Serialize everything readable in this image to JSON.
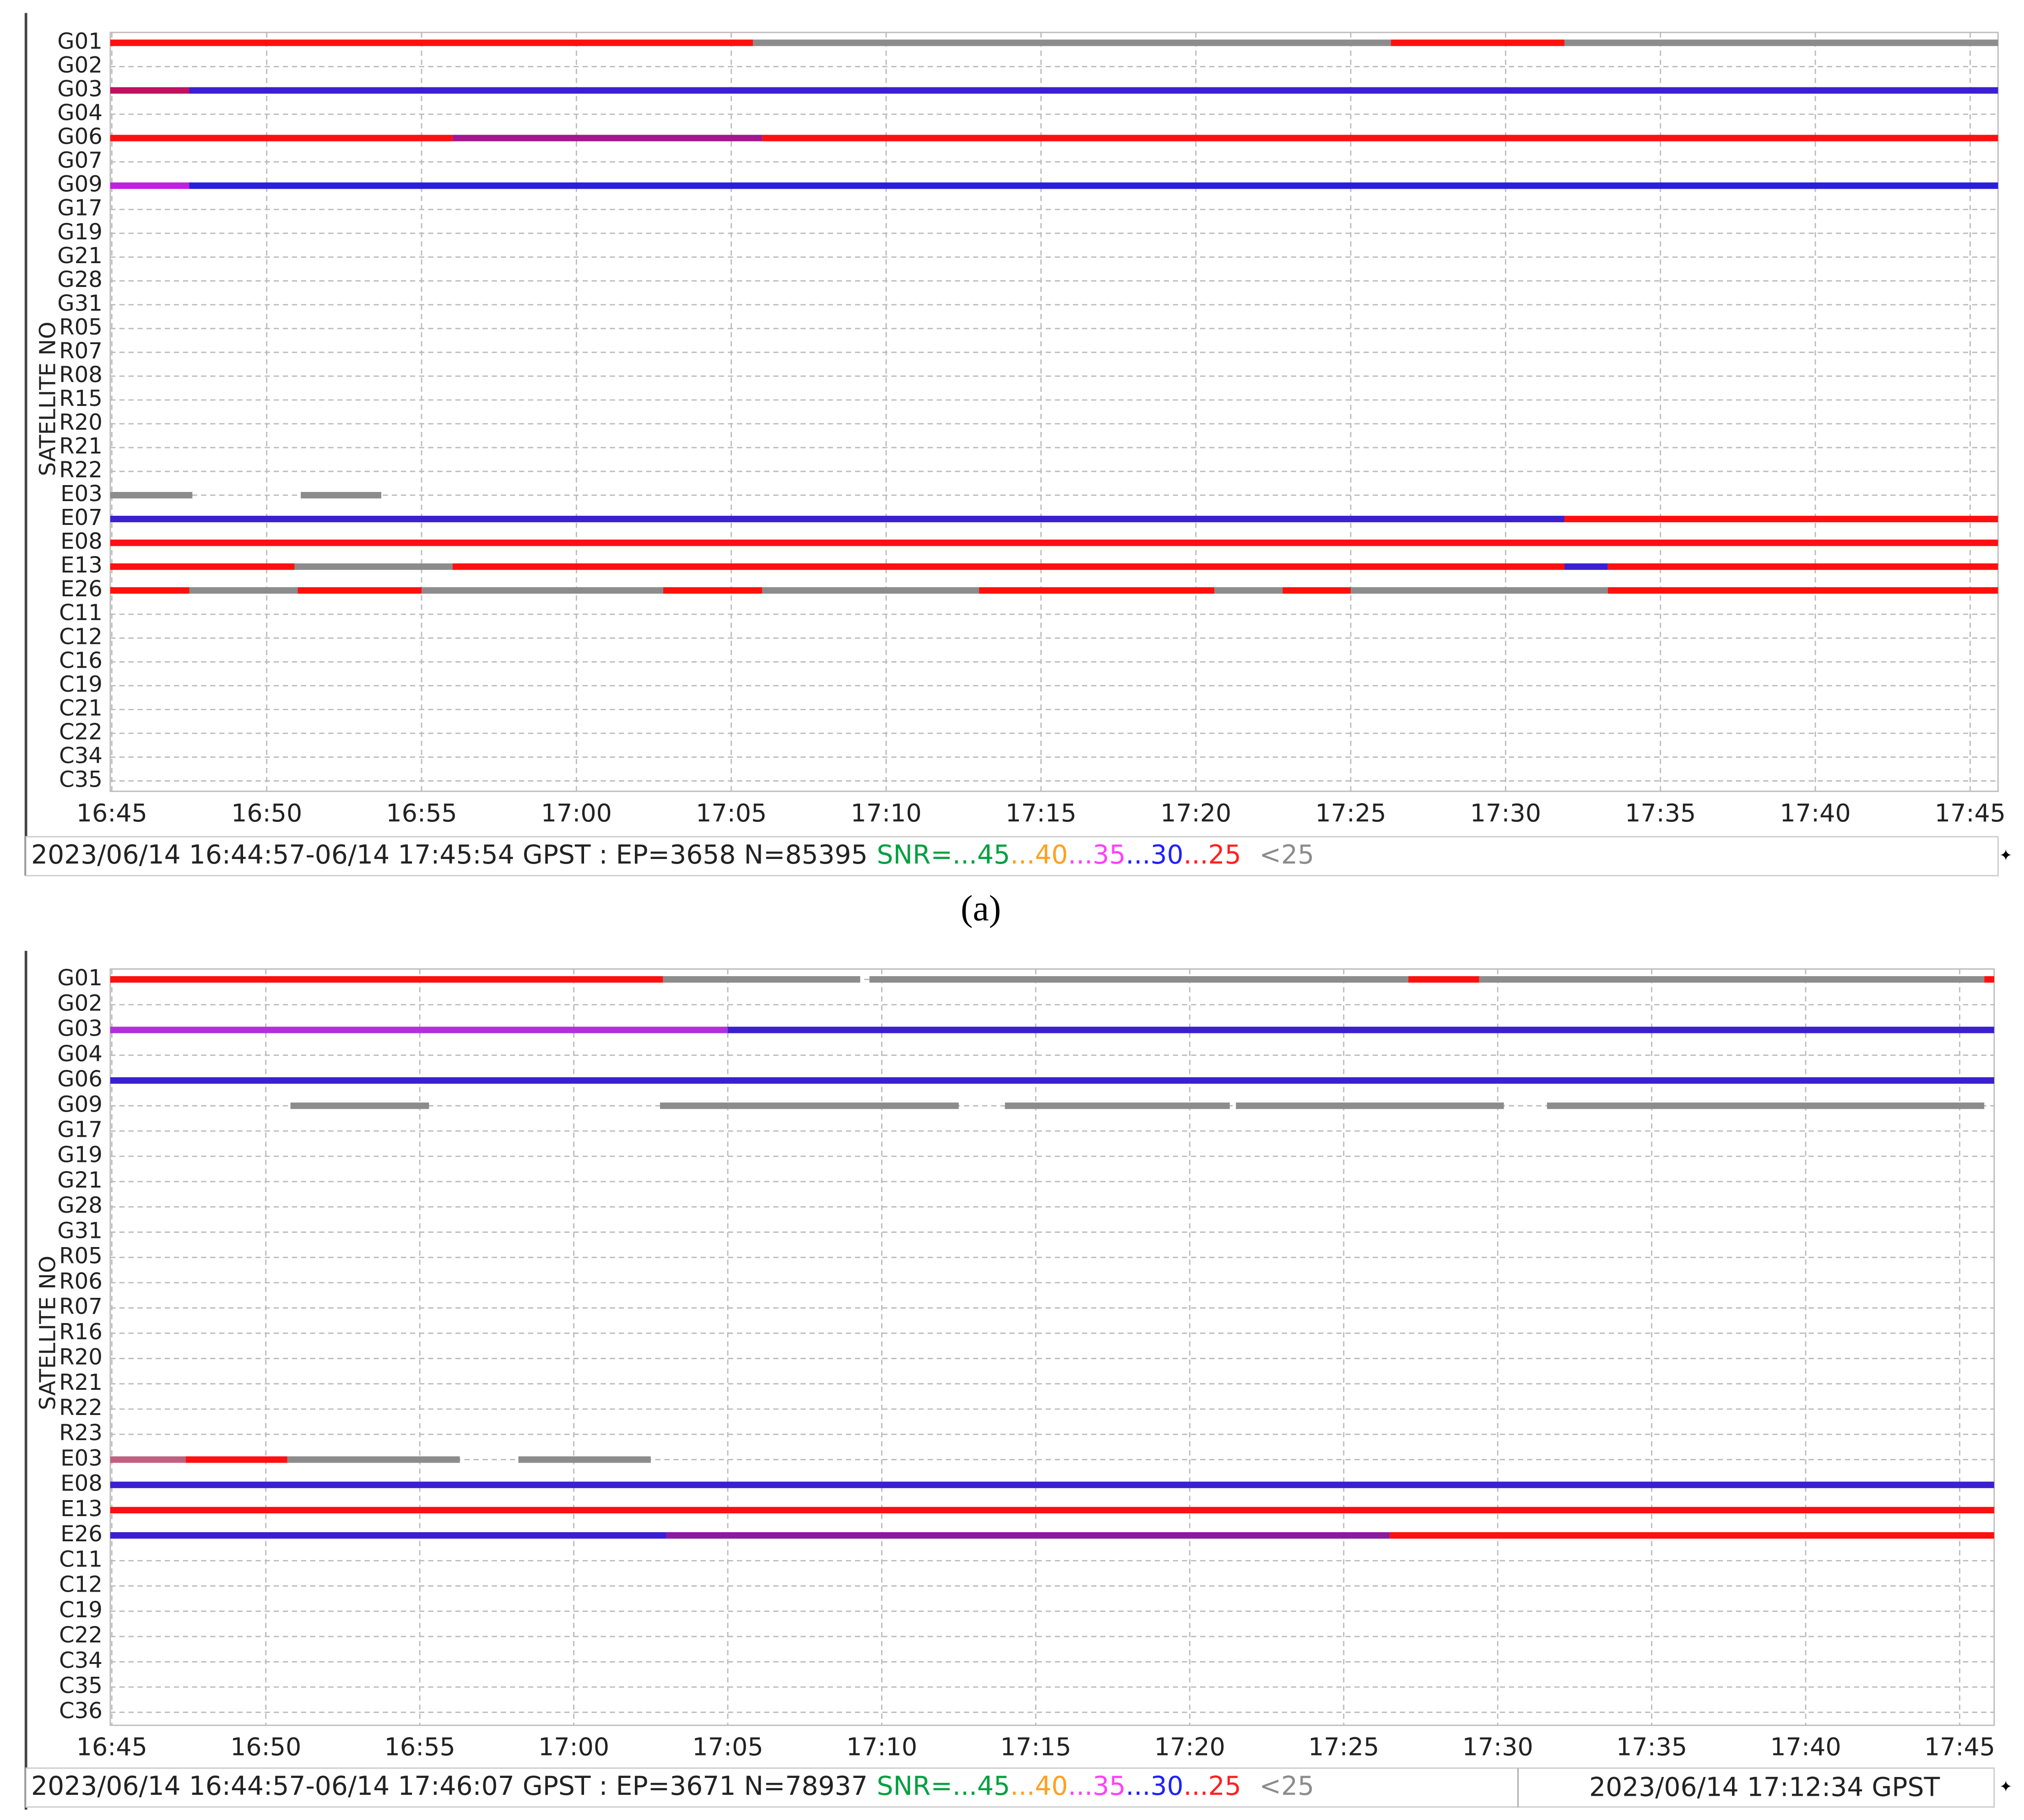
{
  "chart_data": [
    {
      "type": "timeline",
      "caption": "(a)",
      "y_label": "SATELLITE NO",
      "status": "2023/06/14 16:44:57-06/14 17:45:54 GPST : EP=3658 N=85395",
      "snr_legend": [
        {
          "label": "SNR=...45",
          "color": "#00a040"
        },
        {
          "label": "...40",
          "color": "#ffa020"
        },
        {
          "label": "...35",
          "color": "#ff40ff"
        },
        {
          "label": "...30",
          "color": "#2020ff"
        },
        {
          "label": "...25",
          "color": "#ff2020"
        },
        {
          "label": "<25",
          "color": "#8c8c8c"
        }
      ],
      "xlim": [
        1004.95,
        1065.9
      ],
      "xticks": [
        {
          "value": 1005,
          "label": "16:45"
        },
        {
          "value": 1010,
          "label": "16:50"
        },
        {
          "value": 1015,
          "label": "16:55"
        },
        {
          "value": 1020,
          "label": "17:00"
        },
        {
          "value": 1025,
          "label": "17:05"
        },
        {
          "value": 1030,
          "label": "17:10"
        },
        {
          "value": 1035,
          "label": "17:15"
        },
        {
          "value": 1040,
          "label": "17:20"
        },
        {
          "value": 1045,
          "label": "17:25"
        },
        {
          "value": 1050,
          "label": "17:30"
        },
        {
          "value": 1055,
          "label": "17:35"
        },
        {
          "value": 1060,
          "label": "17:40"
        },
        {
          "value": 1065,
          "label": "17:45"
        }
      ],
      "rows": [
        {
          "name": "G01",
          "segments": [
            {
              "start": 1004.95,
              "end": 1025.7,
              "color": "#ff1010"
            },
            {
              "start": 1025.7,
              "end": 1046.3,
              "color": "#8c8c8c"
            },
            {
              "start": 1046.3,
              "end": 1051.9,
              "color": "#ff1010"
            },
            {
              "start": 1051.9,
              "end": 1065.9,
              "color": "#8c8c8c"
            }
          ]
        },
        {
          "name": "G02",
          "segments": []
        },
        {
          "name": "G03",
          "segments": [
            {
              "start": 1004.95,
              "end": 1007.5,
              "color": "#c01060"
            },
            {
              "start": 1007.5,
              "end": 1065.9,
              "color": "#3a20d0"
            }
          ]
        },
        {
          "name": "G04",
          "segments": []
        },
        {
          "name": "G06",
          "segments": [
            {
              "start": 1004.95,
              "end": 1016,
              "color": "#ff1010"
            },
            {
              "start": 1016,
              "end": 1026,
              "color": "#a01890"
            },
            {
              "start": 1026,
              "end": 1065.9,
              "color": "#ff1010"
            }
          ]
        },
        {
          "name": "G07",
          "segments": []
        },
        {
          "name": "G09",
          "segments": [
            {
              "start": 1004.95,
              "end": 1007.5,
              "color": "#c020e0"
            },
            {
              "start": 1007.5,
              "end": 1065.9,
              "color": "#2a20d8"
            }
          ]
        },
        {
          "name": "G17",
          "segments": []
        },
        {
          "name": "G19",
          "segments": []
        },
        {
          "name": "G21",
          "segments": []
        },
        {
          "name": "G28",
          "segments": []
        },
        {
          "name": "G31",
          "segments": []
        },
        {
          "name": "R05",
          "segments": []
        },
        {
          "name": "R07",
          "segments": []
        },
        {
          "name": "R08",
          "segments": []
        },
        {
          "name": "R15",
          "segments": []
        },
        {
          "name": "R20",
          "segments": []
        },
        {
          "name": "R21",
          "segments": []
        },
        {
          "name": "R22",
          "segments": []
        },
        {
          "name": "E03",
          "segments": [
            {
              "start": 1004.95,
              "end": 1007.6,
              "color": "#8c8c8c"
            },
            {
              "start": 1011.1,
              "end": 1013.7,
              "color": "#8c8c8c"
            }
          ]
        },
        {
          "name": "E07",
          "segments": [
            {
              "start": 1004.95,
              "end": 1051.9,
              "color": "#3a20d0"
            },
            {
              "start": 1051.9,
              "end": 1065.9,
              "color": "#ff1010"
            }
          ]
        },
        {
          "name": "E08",
          "segments": [
            {
              "start": 1004.95,
              "end": 1065.9,
              "color": "#ff1010"
            }
          ]
        },
        {
          "name": "E13",
          "segments": [
            {
              "start": 1004.95,
              "end": 1010.9,
              "color": "#ff1010"
            },
            {
              "start": 1010.9,
              "end": 1016,
              "color": "#8c8c8c"
            },
            {
              "start": 1016,
              "end": 1051.9,
              "color": "#ff1010"
            },
            {
              "start": 1051.9,
              "end": 1053.3,
              "color": "#3a20d0"
            },
            {
              "start": 1053.3,
              "end": 1065.9,
              "color": "#ff1010"
            }
          ]
        },
        {
          "name": "E26",
          "segments": [
            {
              "start": 1004.95,
              "end": 1007.5,
              "color": "#ff1010"
            },
            {
              "start": 1007.5,
              "end": 1011,
              "color": "#8c8c8c"
            },
            {
              "start": 1011,
              "end": 1015,
              "color": "#ff1010"
            },
            {
              "start": 1015,
              "end": 1022.8,
              "color": "#8c8c8c"
            },
            {
              "start": 1022.8,
              "end": 1026,
              "color": "#ff1010"
            },
            {
              "start": 1026,
              "end": 1033,
              "color": "#8c8c8c"
            },
            {
              "start": 1033,
              "end": 1040.6,
              "color": "#ff1010"
            },
            {
              "start": 1040.6,
              "end": 1042.8,
              "color": "#8c8c8c"
            },
            {
              "start": 1042.8,
              "end": 1045,
              "color": "#ff1010"
            },
            {
              "start": 1045,
              "end": 1051.9,
              "color": "#8c8c8c"
            },
            {
              "start": 1051.9,
              "end": 1053.3,
              "color": "#8c8c8c"
            },
            {
              "start": 1053.3,
              "end": 1065.9,
              "color": "#ff1010"
            }
          ]
        },
        {
          "name": "C11",
          "segments": []
        },
        {
          "name": "C12",
          "segments": []
        },
        {
          "name": "C16",
          "segments": []
        },
        {
          "name": "C19",
          "segments": []
        },
        {
          "name": "C21",
          "segments": []
        },
        {
          "name": "C22",
          "segments": []
        },
        {
          "name": "C34",
          "segments": []
        },
        {
          "name": "C35",
          "segments": []
        }
      ]
    },
    {
      "type": "timeline",
      "y_label": "SATELLITE NO",
      "status": "2023/06/14 16:44:57-06/14 17:46:07 GPST : EP=3671 N=78937",
      "cursor_time": "2023/06/14 17:12:34 GPST",
      "snr_legend": [
        {
          "label": "SNR=...45",
          "color": "#00a040"
        },
        {
          "label": "...40",
          "color": "#ffa020"
        },
        {
          "label": "...35",
          "color": "#ff40ff"
        },
        {
          "label": "...30",
          "color": "#2020ff"
        },
        {
          "label": "...25",
          "color": "#ff2020"
        },
        {
          "label": "<25",
          "color": "#8c8c8c"
        }
      ],
      "xlim": [
        1004.95,
        1066.12
      ],
      "xticks": [
        {
          "value": 1005,
          "label": "16:45"
        },
        {
          "value": 1010,
          "label": "16:50"
        },
        {
          "value": 1015,
          "label": "16:55"
        },
        {
          "value": 1020,
          "label": "17:00"
        },
        {
          "value": 1025,
          "label": "17:05"
        },
        {
          "value": 1030,
          "label": "17:10"
        },
        {
          "value": 1035,
          "label": "17:15"
        },
        {
          "value": 1040,
          "label": "17:20"
        },
        {
          "value": 1045,
          "label": "17:25"
        },
        {
          "value": 1050,
          "label": "17:30"
        },
        {
          "value": 1055,
          "label": "17:35"
        },
        {
          "value": 1060,
          "label": "17:40"
        },
        {
          "value": 1065,
          "label": "17:45"
        }
      ],
      "rows": [
        {
          "name": "G01",
          "segments": [
            {
              "start": 1004.95,
              "end": 1022.9,
              "color": "#ff1010"
            },
            {
              "start": 1022.9,
              "end": 1029.3,
              "color": "#8c8c8c"
            },
            {
              "start": 1029.6,
              "end": 1047.1,
              "color": "#8c8c8c"
            },
            {
              "start": 1047.1,
              "end": 1049.4,
              "color": "#ff1010"
            },
            {
              "start": 1049.4,
              "end": 1065.8,
              "color": "#8c8c8c"
            },
            {
              "start": 1065.8,
              "end": 1066.12,
              "color": "#ff1010"
            }
          ]
        },
        {
          "name": "G02",
          "segments": []
        },
        {
          "name": "G03",
          "segments": [
            {
              "start": 1004.95,
              "end": 1025,
              "color": "#b030e0"
            },
            {
              "start": 1025,
              "end": 1066.12,
              "color": "#3a20d0"
            }
          ]
        },
        {
          "name": "G04",
          "segments": []
        },
        {
          "name": "G06",
          "segments": [
            {
              "start": 1004.95,
              "end": 1066.12,
              "color": "#3a20d0"
            }
          ]
        },
        {
          "name": "G09",
          "segments": [
            {
              "start": 1010.8,
              "end": 1015.3,
              "color": "#8c8c8c"
            },
            {
              "start": 1022.8,
              "end": 1032.5,
              "color": "#8c8c8c"
            },
            {
              "start": 1034,
              "end": 1041.3,
              "color": "#8c8c8c"
            },
            {
              "start": 1041.5,
              "end": 1050.2,
              "color": "#8c8c8c"
            },
            {
              "start": 1051.6,
              "end": 1065.8,
              "color": "#8c8c8c"
            }
          ]
        },
        {
          "name": "G17",
          "segments": []
        },
        {
          "name": "G19",
          "segments": []
        },
        {
          "name": "G21",
          "segments": []
        },
        {
          "name": "G28",
          "segments": []
        },
        {
          "name": "G31",
          "segments": []
        },
        {
          "name": "R05",
          "segments": []
        },
        {
          "name": "R06",
          "segments": []
        },
        {
          "name": "R07",
          "segments": []
        },
        {
          "name": "R16",
          "segments": []
        },
        {
          "name": "R20",
          "segments": []
        },
        {
          "name": "R21",
          "segments": []
        },
        {
          "name": "R22",
          "segments": []
        },
        {
          "name": "R23",
          "segments": []
        },
        {
          "name": "E03",
          "segments": [
            {
              "start": 1004.95,
              "end": 1007.4,
              "color": "#c06080"
            },
            {
              "start": 1007.4,
              "end": 1010.7,
              "color": "#ff1010"
            },
            {
              "start": 1010.7,
              "end": 1016.3,
              "color": "#8c8c8c"
            },
            {
              "start": 1018.2,
              "end": 1022.5,
              "color": "#8c8c8c"
            }
          ]
        },
        {
          "name": "E08",
          "segments": [
            {
              "start": 1004.95,
              "end": 1066.12,
              "color": "#3a20d0"
            }
          ]
        },
        {
          "name": "E13",
          "segments": [
            {
              "start": 1004.95,
              "end": 1066.12,
              "color": "#ff1010"
            }
          ]
        },
        {
          "name": "E26",
          "segments": [
            {
              "start": 1004.95,
              "end": 1023,
              "color": "#3a20d0"
            },
            {
              "start": 1023,
              "end": 1046.5,
              "color": "#8a1aa0"
            },
            {
              "start": 1046.5,
              "end": 1066.12,
              "color": "#ff1010"
            }
          ]
        },
        {
          "name": "C11",
          "segments": []
        },
        {
          "name": "C12",
          "segments": []
        },
        {
          "name": "C19",
          "segments": []
        },
        {
          "name": "C22",
          "segments": []
        },
        {
          "name": "C34",
          "segments": []
        },
        {
          "name": "C35",
          "segments": []
        },
        {
          "name": "C36",
          "segments": []
        }
      ]
    }
  ]
}
